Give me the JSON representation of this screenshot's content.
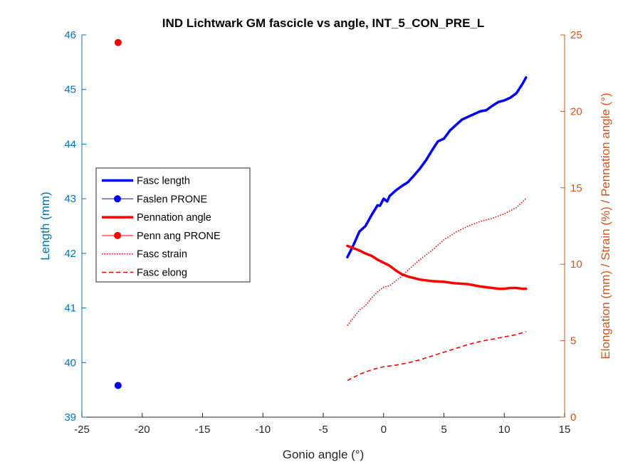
{
  "chart_data": {
    "type": "line",
    "title": "IND Lichtwark GM fascicle vs angle, INT_5_CON_PRE_L",
    "xlabel": "Gonio angle (°)",
    "ylabel_left": "Length (mm)",
    "ylabel_right": "Elongation (mm) / Strain (%) / Pennation angle (°)",
    "xlim": [
      -25,
      15
    ],
    "ylim_left": [
      39,
      46
    ],
    "ylim_right": [
      0,
      25
    ],
    "xticks": [
      "-25",
      "-20",
      "-15",
      "-10",
      "-5",
      "0",
      "5",
      "10",
      "15"
    ],
    "yticks_left": [
      "39",
      "40",
      "41",
      "42",
      "43",
      "44",
      "45",
      "46"
    ],
    "yticks_right": [
      "0",
      "5",
      "10",
      "15",
      "20",
      "25"
    ],
    "grid": false,
    "legend_position": "middle-left",
    "colors": {
      "left_axis": "#0072BD",
      "right_axis": "#D95319",
      "blue": "#0000FF",
      "red": "#FF0000"
    },
    "series": [
      {
        "name": "Fasc length",
        "axis": "left",
        "style": "thick-solid",
        "color": "#0000FF",
        "x": [
          -3.0,
          -2.5,
          -2.0,
          -1.5,
          -1.0,
          -0.5,
          -0.3,
          0.0,
          0.3,
          0.5,
          1.0,
          1.5,
          2.0,
          2.5,
          3.0,
          3.5,
          4.0,
          4.5,
          5.0,
          5.5,
          6.0,
          6.5,
          7.0,
          7.5,
          8.0,
          8.5,
          9.0,
          9.5,
          10.0,
          10.5,
          11.0,
          11.5,
          11.8
        ],
        "y": [
          41.93,
          42.15,
          42.4,
          42.5,
          42.7,
          42.88,
          42.87,
          43.0,
          42.95,
          43.05,
          43.15,
          43.23,
          43.3,
          43.42,
          43.55,
          43.7,
          43.88,
          44.05,
          44.1,
          44.25,
          44.35,
          44.45,
          44.5,
          44.55,
          44.6,
          44.62,
          44.7,
          44.77,
          44.8,
          44.85,
          44.93,
          45.1,
          45.22
        ]
      },
      {
        "name": "Faslen PRONE",
        "axis": "left",
        "style": "marker",
        "color": "#0000FF",
        "x": [
          -22
        ],
        "y": [
          39.58
        ]
      },
      {
        "name": "Pennation angle",
        "axis": "right",
        "style": "thick-solid",
        "color": "#FF0000",
        "x": [
          -3.0,
          -2.5,
          -2.0,
          -1.5,
          -1.0,
          -0.5,
          0.0,
          0.5,
          1.0,
          1.5,
          2.0,
          2.5,
          3.0,
          4.0,
          5.0,
          6.0,
          7.0,
          8.0,
          9.0,
          9.5,
          10.0,
          10.5,
          11.0,
          11.5,
          11.8
        ],
        "y": [
          11.2,
          11.05,
          10.9,
          10.7,
          10.55,
          10.3,
          10.1,
          9.9,
          9.6,
          9.35,
          9.2,
          9.1,
          9.0,
          8.9,
          8.85,
          8.75,
          8.7,
          8.55,
          8.45,
          8.4,
          8.4,
          8.45,
          8.45,
          8.4,
          8.4
        ]
      },
      {
        "name": "Penn ang PRONE",
        "axis": "right",
        "style": "marker",
        "color": "#FF0000",
        "x": [
          -22
        ],
        "y": [
          24.5
        ]
      },
      {
        "name": "Fasc strain",
        "axis": "right",
        "style": "dotted",
        "color": "#FF0000",
        "x": [
          -3.0,
          -2.5,
          -2.0,
          -1.5,
          -1.0,
          -0.5,
          0.0,
          0.5,
          1.0,
          1.5,
          2.0,
          3.0,
          4.0,
          5.0,
          6.0,
          7.0,
          8.0,
          9.0,
          10.0,
          11.0,
          11.8
        ],
        "y": [
          6.0,
          6.5,
          7.0,
          7.3,
          7.8,
          8.2,
          8.5,
          8.6,
          8.9,
          9.2,
          9.6,
          10.3,
          10.9,
          11.6,
          12.1,
          12.5,
          12.8,
          13.0,
          13.3,
          13.7,
          14.3
        ]
      },
      {
        "name": "Fasc elong",
        "axis": "right",
        "style": "dashed",
        "color": "#FF0000",
        "x": [
          -3.0,
          -2.5,
          -2.0,
          -1.5,
          -1.0,
          -0.5,
          0.0,
          1.0,
          2.0,
          3.0,
          4.0,
          5.0,
          6.0,
          7.0,
          8.0,
          9.0,
          10.0,
          11.0,
          11.8
        ],
        "y": [
          2.4,
          2.6,
          2.8,
          2.95,
          3.1,
          3.2,
          3.3,
          3.4,
          3.55,
          3.75,
          4.0,
          4.25,
          4.5,
          4.75,
          4.95,
          5.1,
          5.25,
          5.4,
          5.6
        ]
      }
    ]
  }
}
